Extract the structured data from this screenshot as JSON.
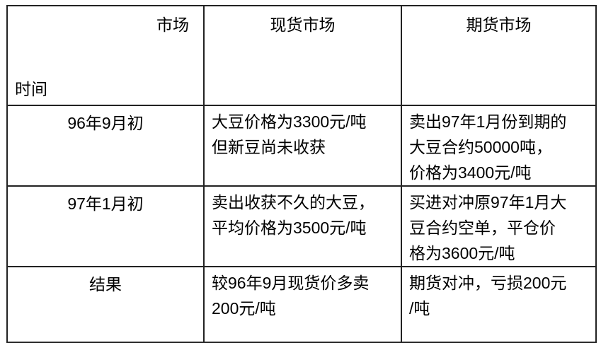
{
  "header": {
    "corner_top": "市场",
    "corner_bottom": "时间",
    "spot": "现货市场",
    "futures": "期货市场"
  },
  "rows": [
    {
      "time": "96年9月初",
      "spot": [
        "大豆价格为3300元/吨",
        "但新豆尚未收获"
      ],
      "futures": [
        "卖出97年1月份到期的",
        "大豆合约50000吨，",
        "价格为3400元/吨"
      ]
    },
    {
      "time": "97年1月初",
      "spot": [
        "卖出收获不久的大豆，",
        "平均价格为3500元/吨"
      ],
      "futures": [
        "买进对冲原97年1月大",
        "豆合约空单，平仓价",
        "格为3600元/吨"
      ]
    },
    {
      "time": "结果",
      "spot": [
        "较96年9月现货价多卖",
        "200元/吨"
      ],
      "futures": [
        "期货对冲，亏损200元",
        "/吨"
      ]
    }
  ]
}
